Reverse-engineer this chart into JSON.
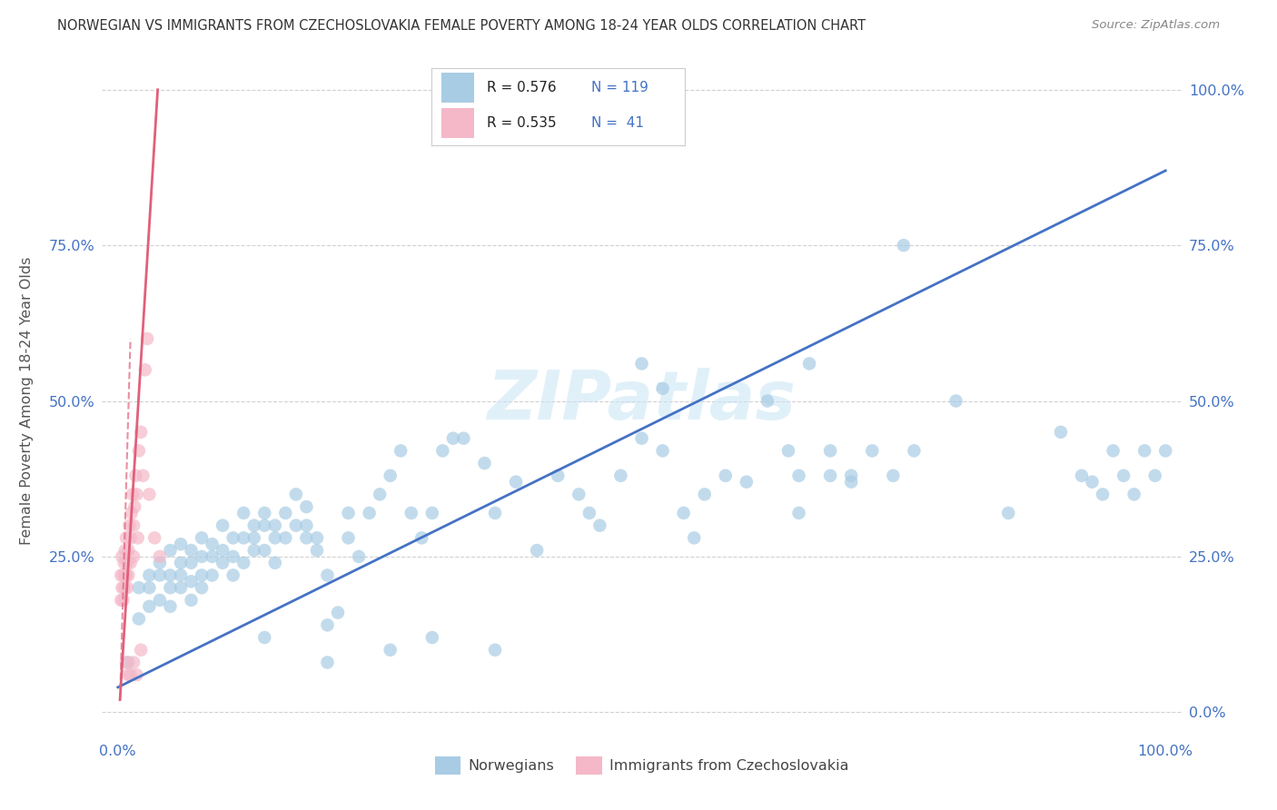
{
  "title": "NORWEGIAN VS IMMIGRANTS FROM CZECHOSLOVAKIA FEMALE POVERTY AMONG 18-24 YEAR OLDS CORRELATION CHART",
  "source": "Source: ZipAtlas.com",
  "ylabel": "Female Poverty Among 18-24 Year Olds",
  "legend_R1": "0.576",
  "legend_N1": "119",
  "legend_R2": "0.535",
  "legend_N2": "41",
  "blue_color": "#a8cce4",
  "pink_color": "#f4b8c8",
  "line_blue": "#4472c4",
  "line_pink": "#e0607a",
  "title_color": "#333333",
  "source_color": "#888888",
  "axis_label_color": "#4472c4",
  "ylabel_color": "#555555",
  "watermark": "ZIPatlas",
  "blue_scatter_x": [
    0.01,
    0.02,
    0.02,
    0.03,
    0.03,
    0.03,
    0.04,
    0.04,
    0.04,
    0.05,
    0.05,
    0.05,
    0.05,
    0.06,
    0.06,
    0.06,
    0.06,
    0.07,
    0.07,
    0.07,
    0.07,
    0.08,
    0.08,
    0.08,
    0.08,
    0.09,
    0.09,
    0.09,
    0.1,
    0.1,
    0.1,
    0.11,
    0.11,
    0.11,
    0.12,
    0.12,
    0.12,
    0.13,
    0.13,
    0.13,
    0.14,
    0.14,
    0.14,
    0.15,
    0.15,
    0.15,
    0.16,
    0.16,
    0.17,
    0.17,
    0.18,
    0.18,
    0.18,
    0.19,
    0.19,
    0.2,
    0.2,
    0.21,
    0.22,
    0.22,
    0.23,
    0.24,
    0.25,
    0.26,
    0.27,
    0.28,
    0.29,
    0.3,
    0.31,
    0.32,
    0.33,
    0.35,
    0.36,
    0.38,
    0.4,
    0.42,
    0.44,
    0.45,
    0.46,
    0.48,
    0.5,
    0.52,
    0.54,
    0.55,
    0.56,
    0.58,
    0.6,
    0.62,
    0.64,
    0.65,
    0.66,
    0.68,
    0.7,
    0.75,
    0.8,
    0.85,
    0.9,
    0.92,
    0.93,
    0.94,
    0.95,
    0.96,
    0.97,
    0.98,
    0.99,
    1.0,
    0.65,
    0.68,
    0.7,
    0.72,
    0.74,
    0.76,
    0.5,
    0.52,
    0.36,
    0.14,
    0.2,
    0.26,
    0.3
  ],
  "blue_scatter_y": [
    0.08,
    0.15,
    0.2,
    0.2,
    0.17,
    0.22,
    0.22,
    0.18,
    0.24,
    0.2,
    0.17,
    0.22,
    0.26,
    0.2,
    0.22,
    0.24,
    0.27,
    0.18,
    0.21,
    0.24,
    0.26,
    0.22,
    0.25,
    0.2,
    0.28,
    0.25,
    0.22,
    0.27,
    0.26,
    0.3,
    0.24,
    0.28,
    0.22,
    0.25,
    0.32,
    0.28,
    0.24,
    0.3,
    0.26,
    0.28,
    0.3,
    0.26,
    0.32,
    0.28,
    0.24,
    0.3,
    0.32,
    0.28,
    0.3,
    0.35,
    0.3,
    0.28,
    0.33,
    0.28,
    0.26,
    0.22,
    0.14,
    0.16,
    0.32,
    0.28,
    0.25,
    0.32,
    0.35,
    0.38,
    0.42,
    0.32,
    0.28,
    0.32,
    0.42,
    0.44,
    0.44,
    0.4,
    0.32,
    0.37,
    0.26,
    0.38,
    0.35,
    0.32,
    0.3,
    0.38,
    0.44,
    0.42,
    0.32,
    0.28,
    0.35,
    0.38,
    0.37,
    0.5,
    0.42,
    0.32,
    0.56,
    0.38,
    0.37,
    0.75,
    0.5,
    0.32,
    0.45,
    0.38,
    0.37,
    0.35,
    0.42,
    0.38,
    0.35,
    0.42,
    0.38,
    0.42,
    0.38,
    0.42,
    0.38,
    0.42,
    0.38,
    0.42,
    0.56,
    0.52,
    0.1,
    0.12,
    0.08,
    0.1,
    0.12
  ],
  "pink_scatter_x": [
    0.003,
    0.003,
    0.004,
    0.004,
    0.005,
    0.005,
    0.006,
    0.006,
    0.007,
    0.007,
    0.008,
    0.008,
    0.009,
    0.009,
    0.01,
    0.01,
    0.011,
    0.012,
    0.012,
    0.013,
    0.014,
    0.015,
    0.015,
    0.016,
    0.017,
    0.018,
    0.019,
    0.02,
    0.022,
    0.024,
    0.026,
    0.028,
    0.03,
    0.035,
    0.04,
    0.008,
    0.01,
    0.012,
    0.015,
    0.018,
    0.022
  ],
  "pink_scatter_y": [
    0.18,
    0.22,
    0.2,
    0.25,
    0.22,
    0.18,
    0.24,
    0.2,
    0.22,
    0.26,
    0.22,
    0.28,
    0.24,
    0.2,
    0.26,
    0.22,
    0.3,
    0.28,
    0.24,
    0.32,
    0.35,
    0.3,
    0.25,
    0.33,
    0.38,
    0.35,
    0.28,
    0.42,
    0.45,
    0.38,
    0.55,
    0.6,
    0.35,
    0.28,
    0.25,
    0.08,
    0.06,
    0.06,
    0.08,
    0.06,
    0.1
  ],
  "blue_line": [
    0.0,
    1.0,
    0.04,
    0.87
  ],
  "pink_line": [
    0.002,
    0.038,
    0.02,
    1.0
  ],
  "pink_dash": [
    0.002,
    0.012,
    0.02,
    0.6
  ],
  "xticks": [
    0.0,
    1.0
  ],
  "xtick_labels": [
    "0.0%",
    "100.0%"
  ],
  "yticks": [
    0.0,
    0.25,
    0.5,
    0.75,
    1.0
  ],
  "ytick_labels_left": [
    "",
    "25.0%",
    "50.0%",
    "75.0%",
    ""
  ],
  "ytick_labels_right": [
    "0.0%",
    "25.0%",
    "50.0%",
    "75.0%",
    "100.0%"
  ]
}
